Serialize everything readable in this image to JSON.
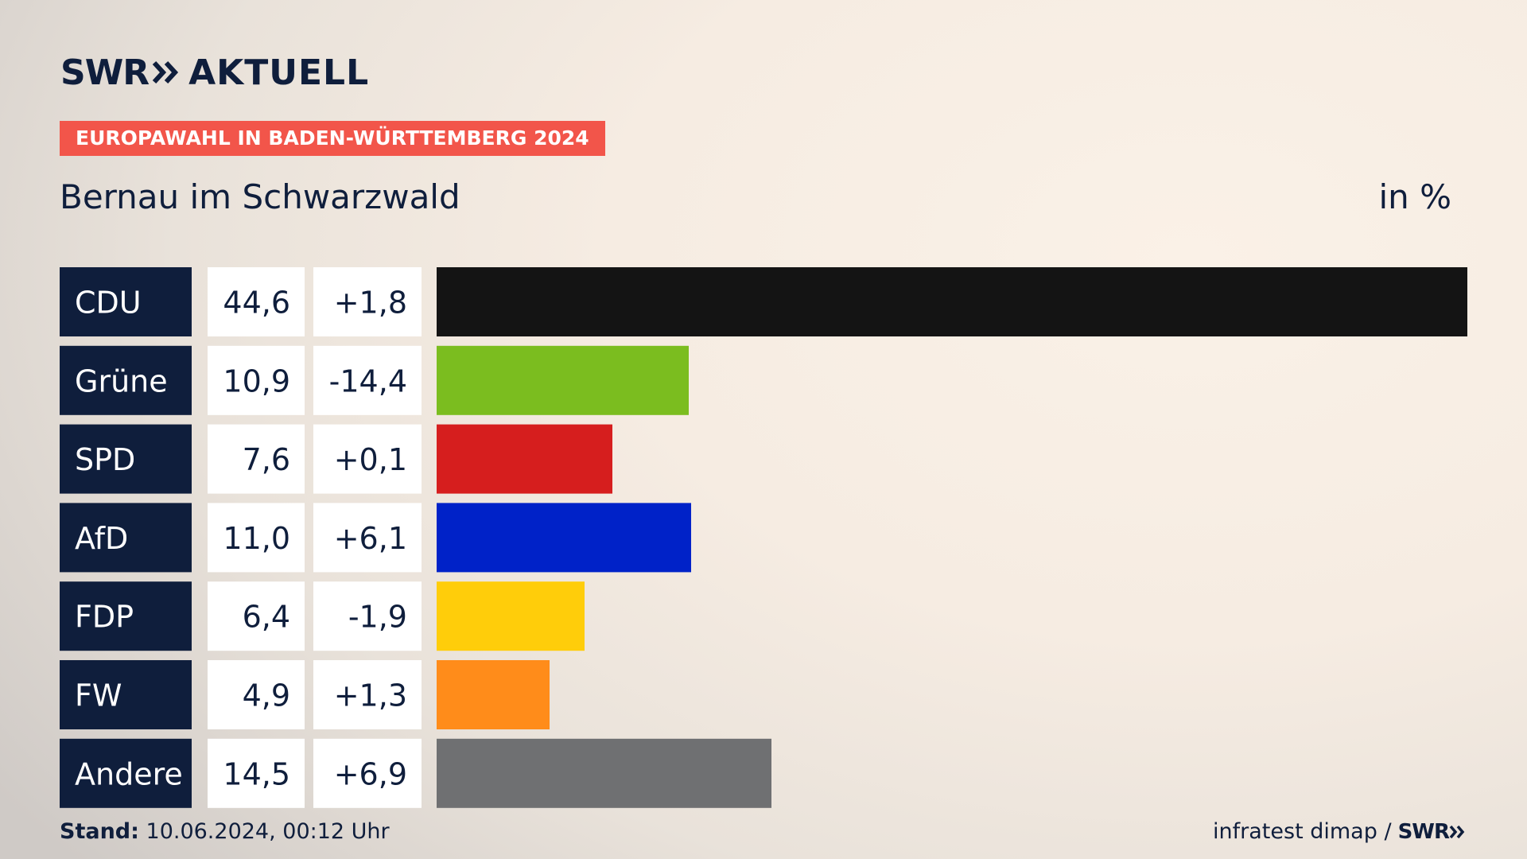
{
  "header": {
    "brand": "SWR",
    "app_name": "AKTUELL",
    "tag": "EUROPAWAHL IN BADEN-WÜRTTEMBERG 2024"
  },
  "footer": {
    "stand_label": "Stand:",
    "stand_value": "10.06.2024, 00:12 Uhr",
    "source": "infratest dimap /",
    "source_brand": "SWR"
  },
  "chart_data": {
    "type": "bar",
    "title": "Bernau im Schwarzwald",
    "unit": "in %",
    "categories": [
      "CDU",
      "Grüne",
      "SPD",
      "AfD",
      "FDP",
      "FW",
      "Andere"
    ],
    "values": [
      44.6,
      10.9,
      7.6,
      11.0,
      6.4,
      4.9,
      14.5
    ],
    "value_labels": [
      "44,6",
      "10,9",
      "7,6",
      "11,0",
      "6,4",
      "4,9",
      "14,5"
    ],
    "change_labels": [
      "+1,8",
      "-14,4",
      "+0,1",
      "+6,1",
      "-1,9",
      "+1,3",
      "+6,9"
    ],
    "colors": [
      "#141414",
      "#7bbd1f",
      "#d61e1e",
      "#0022c8",
      "#ffcd0a",
      "#ff8c1a",
      "#6f7072"
    ],
    "xlim": [
      0,
      44.6
    ]
  }
}
